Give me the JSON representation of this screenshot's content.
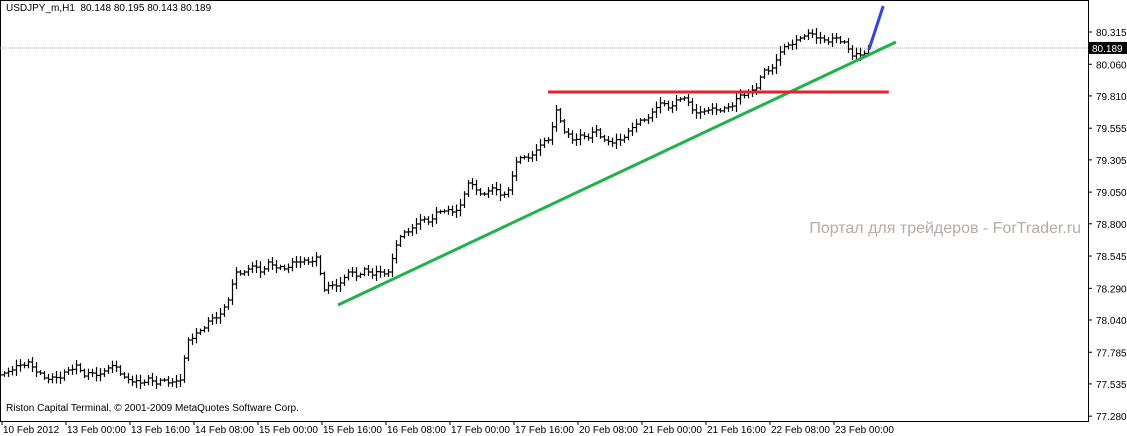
{
  "header": {
    "symbol": "USDJPY_m,H1",
    "ohlc": "80.148 80.195 80.143 80.189"
  },
  "copyright": "Riston Capital Terminal, © 2001-2009 MetaQuotes Software Corp.",
  "watermark": "Портал для трейдеров - ForTrader.ru",
  "chart_data": {
    "type": "bar",
    "ylim": [
      77.28,
      80.315
    ],
    "y_ticks": [
      "80.315",
      "80.060",
      "79.810",
      "79.555",
      "79.305",
      "79.050",
      "78.800",
      "78.545",
      "78.290",
      "78.040",
      "77.785",
      "77.535",
      "77.280"
    ],
    "current_price": "80.189",
    "x_ticks": [
      "10 Feb 2012",
      "13 Feb 00:00",
      "13 Feb 16:00",
      "14 Feb 08:00",
      "15 Feb 00:00",
      "15 Feb 16:00",
      "16 Feb 08:00",
      "17 Feb 00:00",
      "17 Feb 16:00",
      "20 Feb 08:00",
      "21 Feb 00:00",
      "21 Feb 16:00",
      "22 Feb 08:00",
      "23 Feb 00:00"
    ],
    "closes": [
      77.621,
      77.645,
      77.684,
      77.708,
      77.629,
      77.582,
      77.589,
      77.582,
      77.645,
      77.684,
      77.597,
      77.621,
      77.613,
      77.661,
      77.668,
      77.589,
      77.55,
      77.542,
      77.582,
      77.534,
      77.566,
      77.55,
      77.566,
      77.882,
      77.937,
      77.977,
      78.056,
      78.087,
      78.198,
      78.419,
      78.419,
      78.466,
      78.419,
      78.498,
      78.451,
      78.443,
      78.498,
      78.498,
      78.498,
      78.537,
      78.277,
      78.316,
      78.332,
      78.419,
      78.387,
      78.443,
      78.395,
      78.419,
      78.419,
      78.632,
      78.735,
      78.767,
      78.83,
      78.814,
      78.893,
      78.901,
      78.893,
      78.948,
      79.122,
      79.067,
      79.035,
      79.083,
      79.027,
      79.067,
      79.288,
      79.327,
      79.343,
      79.422,
      79.462,
      79.699,
      79.525,
      79.462,
      79.501,
      79.478,
      79.541,
      79.462,
      79.438,
      79.462,
      79.533,
      79.588,
      79.62,
      79.683,
      79.754,
      79.715,
      79.778,
      79.794,
      79.699,
      79.683,
      79.699,
      79.699,
      79.715,
      79.73,
      79.817,
      79.841,
      79.873,
      80.015,
      80.031,
      80.157,
      80.212,
      80.252,
      80.283,
      80.299,
      80.268,
      80.236,
      80.268,
      80.236,
      80.125,
      80.133,
      80.189
    ],
    "lines": [
      {
        "color": "#22b14c",
        "from": {
          "bar": 41.75,
          "price": 78.158
        },
        "to": {
          "bar": 111.5,
          "price": 80.236
        }
      },
      {
        "color": "#e8202a",
        "from": {
          "bar": 68,
          "price": 79.841
        },
        "to": {
          "bar": 110.6,
          "price": 79.841
        }
      },
      {
        "color": "#3344dd",
        "from": {
          "bar": 108.1,
          "price": 80.173
        },
        "to": {
          "bar": 109.9,
          "price": 80.52
        }
      }
    ]
  }
}
